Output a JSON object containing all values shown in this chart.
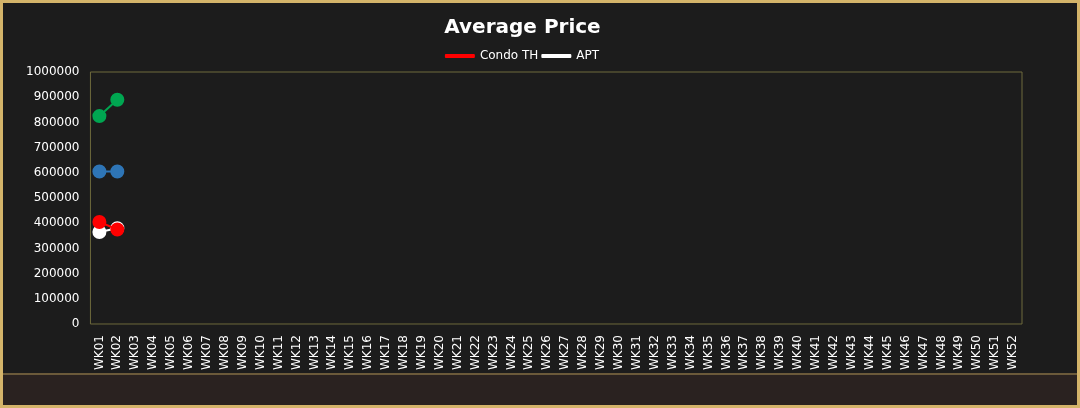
{
  "chart_data": {
    "type": "line",
    "title": "Average Price",
    "categories": [
      "WK01",
      "WK02",
      "WK03",
      "WK04",
      "WK05",
      "WK06",
      "WK07",
      "WK08",
      "WK09",
      "WK10",
      "WK11",
      "WK12",
      "WK13",
      "WK14",
      "WK15",
      "WK16",
      "WK17",
      "WK18",
      "WK19",
      "WK20",
      "WK21",
      "WK22",
      "WK23",
      "WK24",
      "WK25",
      "WK26",
      "WK27",
      "WK28",
      "WK29",
      "WK30",
      "WK31",
      "WK32",
      "WK33",
      "WK34",
      "WK35",
      "WK36",
      "WK37",
      "WK38",
      "WK39",
      "WK40",
      "WK41",
      "WK42",
      "WK43",
      "WK44",
      "WK45",
      "WK46",
      "WK47",
      "WK48",
      "WK49",
      "WK50",
      "WK51",
      "WK52"
    ],
    "series": [
      {
        "name": "APT",
        "color": "#ffffff",
        "values": [
          365000,
          380000,
          null,
          null,
          null,
          null,
          null,
          null,
          null,
          null,
          null,
          null,
          null,
          null,
          null,
          null,
          null,
          null,
          null,
          null,
          null,
          null,
          null,
          null,
          null,
          null,
          null,
          null,
          null,
          null,
          null,
          null,
          null,
          null,
          null,
          null,
          null,
          null,
          null,
          null,
          null,
          null,
          null,
          null,
          null,
          null,
          null,
          null,
          null,
          null,
          null,
          null
        ]
      },
      {
        "name": "Condo TH",
        "color": "#ff0000",
        "values": [
          405000,
          375000,
          null,
          null,
          null,
          null,
          null,
          null,
          null,
          null,
          null,
          null,
          null,
          null,
          null,
          null,
          null,
          null,
          null,
          null,
          null,
          null,
          null,
          null,
          null,
          null,
          null,
          null,
          null,
          null,
          null,
          null,
          null,
          null,
          null,
          null,
          null,
          null,
          null,
          null,
          null,
          null,
          null,
          null,
          null,
          null,
          null,
          null,
          null,
          null,
          null,
          null
        ]
      },
      {
        "color": "#00a651",
        "values": [
          825000,
          890000,
          null,
          null,
          null,
          null,
          null,
          null,
          null,
          null,
          null,
          null,
          null,
          null,
          null,
          null,
          null,
          null,
          null,
          null,
          null,
          null,
          null,
          null,
          null,
          null,
          null,
          null,
          null,
          null,
          null,
          null,
          null,
          null,
          null,
          null,
          null,
          null,
          null,
          null,
          null,
          null,
          null,
          null,
          null,
          null,
          null,
          null,
          null,
          null,
          null,
          null
        ]
      },
      {
        "color": "#2e75b6",
        "values": [
          605000,
          605000,
          null,
          null,
          null,
          null,
          null,
          null,
          null,
          null,
          null,
          null,
          null,
          null,
          null,
          null,
          null,
          null,
          null,
          null,
          null,
          null,
          null,
          null,
          null,
          null,
          null,
          null,
          null,
          null,
          null,
          null,
          null,
          null,
          null,
          null,
          null,
          null,
          null,
          null,
          null,
          null,
          null,
          null,
          null,
          null,
          null,
          null,
          null,
          null,
          null,
          null
        ]
      }
    ],
    "ylim": [
      0,
      1000000
    ],
    "yticks": [
      0,
      100000,
      200000,
      300000,
      400000,
      500000,
      600000,
      700000,
      800000,
      900000,
      1000000
    ],
    "grid": false,
    "legend": "top",
    "marker": "circle",
    "line_style": "solid"
  }
}
